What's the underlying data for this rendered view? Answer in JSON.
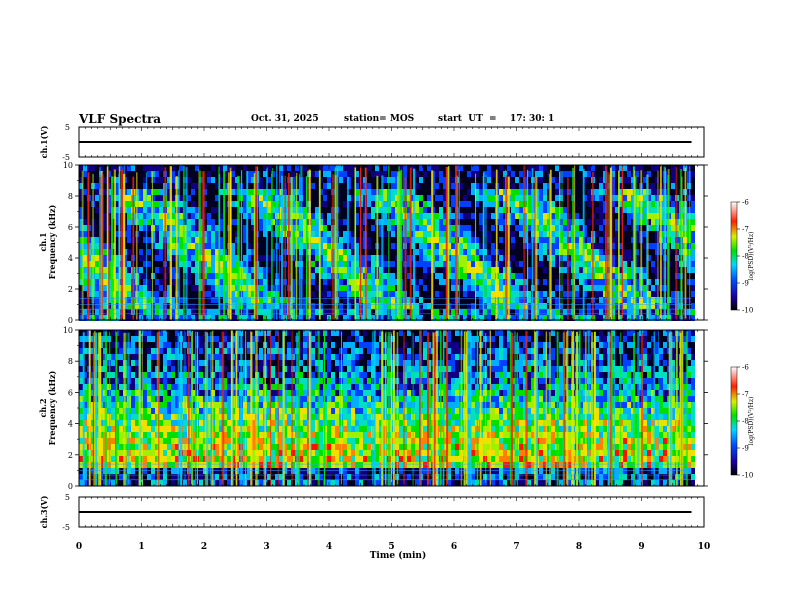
{
  "header": {
    "title": "VLF Spectra",
    "date": "Oct. 31, 2025",
    "station": "station= MOS",
    "start_label": "start  UT  =",
    "start_time": "17: 30: 1"
  },
  "chart_data": [
    {
      "type": "line",
      "panel": "ch1-waveform",
      "ylabel": "ch.1(V)",
      "yticks": [
        "5",
        "-5"
      ],
      "ylim": [
        -5,
        5
      ],
      "xlim": [
        0,
        10
      ],
      "series": [
        {
          "name": "ch.1",
          "x": [
            0,
            9.8
          ],
          "y": [
            0,
            0
          ]
        }
      ]
    },
    {
      "type": "heatmap",
      "panel": "ch1-spectrogram",
      "ylabel_top": "ch.1",
      "ylabel": "Frequency  (kHz)",
      "yticks": [
        "0",
        "2",
        "4",
        "6",
        "8",
        "10"
      ],
      "ylim": [
        0,
        10
      ],
      "xlim": [
        0,
        9.8
      ],
      "colorbar": {
        "label": "log(PSD)(V²/Hz)",
        "ticks": [
          "-6",
          "-7",
          "-8",
          "-9",
          "-10"
        ],
        "range": [
          -10,
          -6
        ]
      }
    },
    {
      "type": "heatmap",
      "panel": "ch2-spectrogram",
      "ylabel_top": "ch.2",
      "ylabel": "Frequency  (kHz)",
      "yticks": [
        "0",
        "2",
        "4",
        "6",
        "8",
        "10"
      ],
      "ylim": [
        0,
        10
      ],
      "xlim": [
        0,
        9.8
      ],
      "colorbar": {
        "label": "log(PSD)(V²/Hz)",
        "ticks": [
          "-6",
          "-7",
          "-8",
          "-9",
          "-10"
        ],
        "range": [
          -10,
          -6
        ]
      }
    },
    {
      "type": "line",
      "panel": "ch3-waveform",
      "ylabel": "ch.3(V)",
      "yticks": [
        "5",
        "-5"
      ],
      "ylim": [
        -5,
        5
      ],
      "xlim": [
        0,
        10
      ],
      "xlabel": "Time  (min)",
      "xticks": [
        "0",
        "1",
        "2",
        "3",
        "4",
        "5",
        "6",
        "7",
        "8",
        "9",
        "10"
      ],
      "series": [
        {
          "name": "ch.3",
          "x": [
            0,
            9.8
          ],
          "y": [
            0,
            0
          ]
        }
      ]
    }
  ]
}
